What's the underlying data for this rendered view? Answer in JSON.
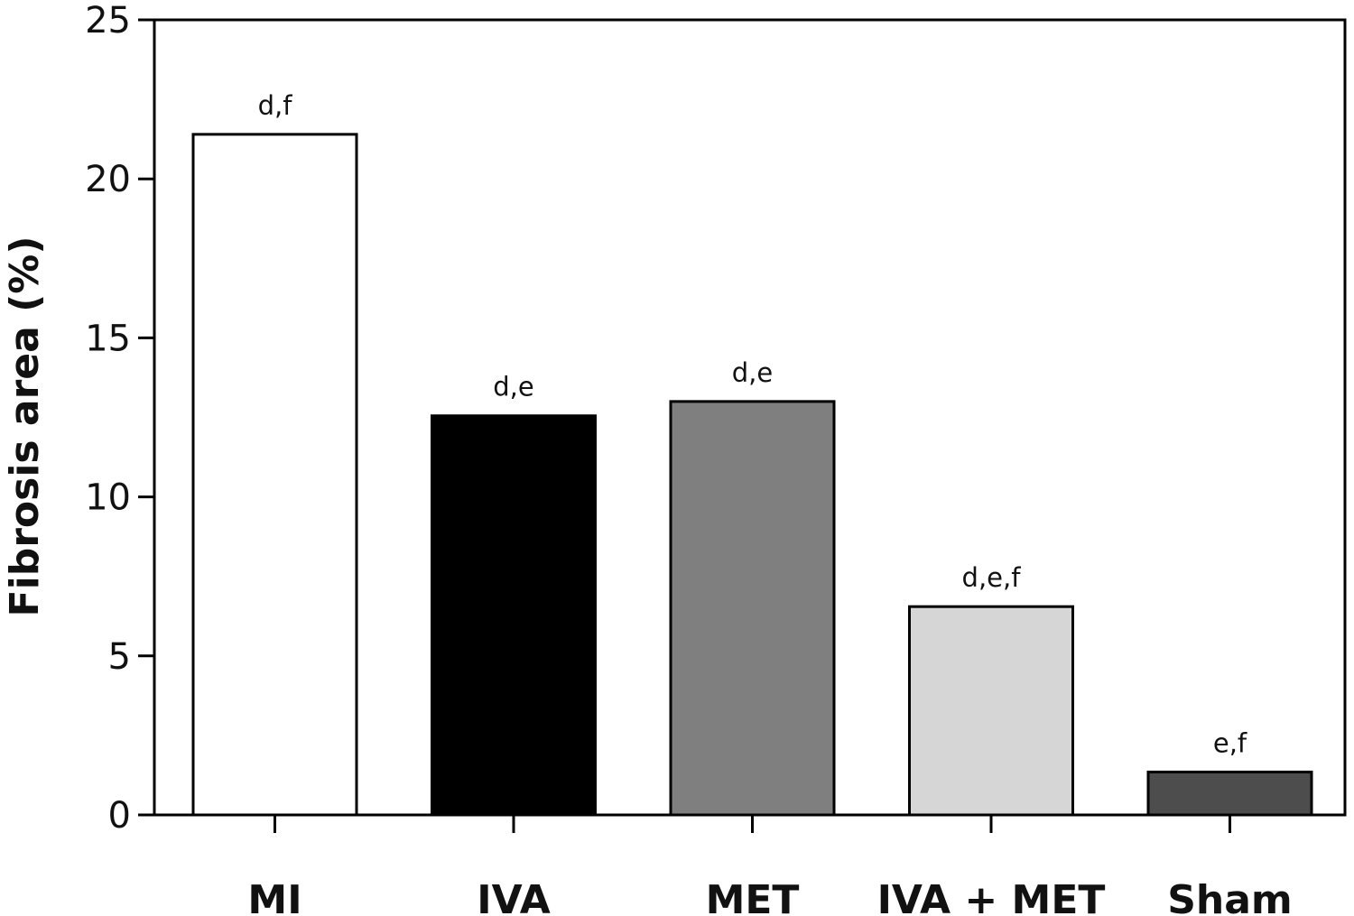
{
  "chart_data": {
    "type": "bar",
    "title": "",
    "xlabel": "",
    "ylabel": "Fibrosis area (%)",
    "categories": [
      "MI",
      "IVA",
      "MET",
      "IVA + MET",
      "Sham"
    ],
    "values": [
      21.4,
      12.55,
      13.0,
      6.55,
      1.35
    ],
    "annotations": [
      "d,f",
      "d,e",
      "d,e",
      "d,e,f",
      "e,f"
    ],
    "colors": [
      "#ffffff",
      "#000000",
      "#7f7f7f",
      "#d6d6d6",
      "#4d4d4d"
    ],
    "ylim": [
      0,
      25
    ],
    "yticks": [
      0,
      5,
      10,
      15,
      20,
      25
    ],
    "grid": false,
    "legend": "none"
  }
}
